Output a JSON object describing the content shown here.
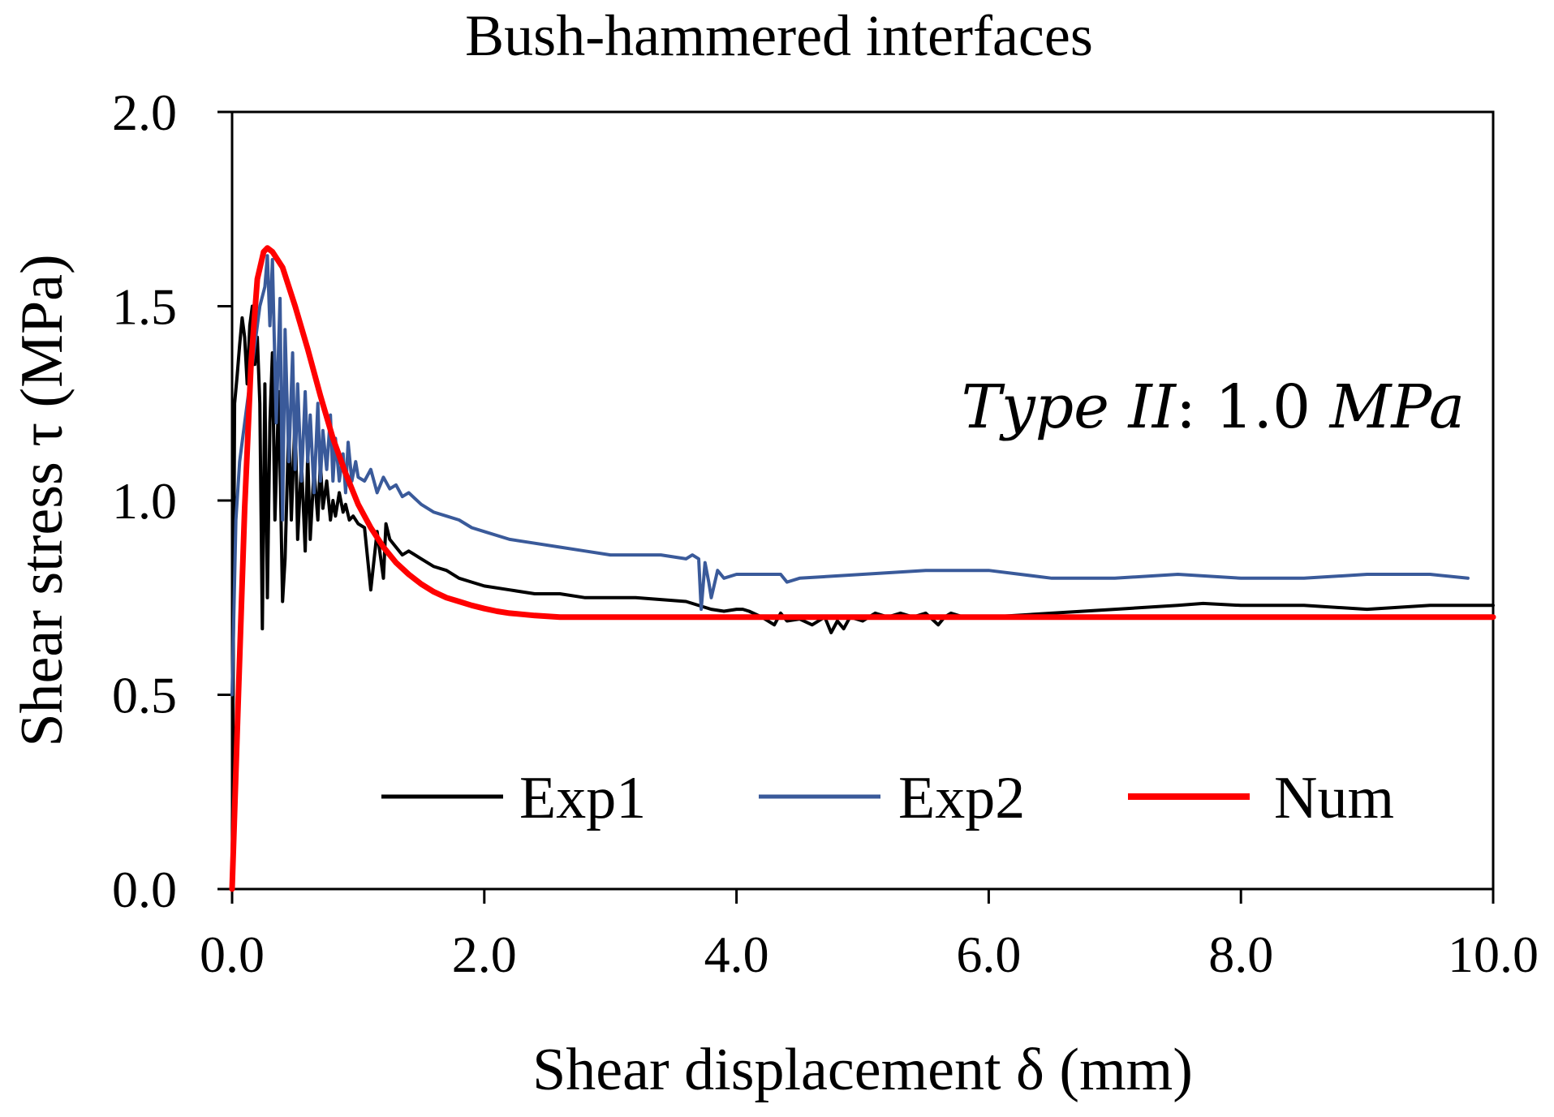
{
  "chart_data": {
    "type": "line",
    "title": "Bush-hammered interfaces",
    "xlabel": "Shear displacement δ (mm)",
    "ylabel": "Shear stress τ (MPa)",
    "xlim": [
      0,
      10
    ],
    "ylim": [
      0,
      2
    ],
    "xticks": [
      "0.0",
      "2.0",
      "4.0",
      "6.0",
      "8.0",
      "10.0"
    ],
    "yticks": [
      "0.0",
      "0.5",
      "1.0",
      "1.5",
      "2.0"
    ],
    "grid": false,
    "legend_position": "bottom",
    "annotation": {
      "italic_part": "Type II",
      "separator": ": ",
      "value_part": "1.0 ",
      "unit_part": "MPa"
    },
    "series": [
      {
        "name": "Exp1",
        "color": "#000000",
        "x": [
          0.0,
          0.02,
          0.04,
          0.06,
          0.08,
          0.1,
          0.12,
          0.14,
          0.16,
          0.18,
          0.2,
          0.22,
          0.24,
          0.26,
          0.28,
          0.3,
          0.32,
          0.34,
          0.37,
          0.4,
          0.42,
          0.45,
          0.47,
          0.5,
          0.52,
          0.55,
          0.58,
          0.6,
          0.62,
          0.65,
          0.68,
          0.7,
          0.72,
          0.75,
          0.78,
          0.8,
          0.82,
          0.85,
          0.88,
          0.9,
          0.93,
          0.96,
          1.0,
          1.05,
          1.1,
          1.15,
          1.2,
          1.22,
          1.25,
          1.3,
          1.35,
          1.4,
          1.5,
          1.6,
          1.7,
          1.8,
          1.9,
          2.0,
          2.2,
          2.4,
          2.6,
          2.8,
          3.0,
          3.2,
          3.4,
          3.6,
          3.8,
          3.9,
          4.0,
          4.05,
          4.1,
          4.2,
          4.3,
          4.35,
          4.4,
          4.5,
          4.6,
          4.7,
          4.75,
          4.8,
          4.85,
          4.9,
          5.0,
          5.1,
          5.2,
          5.3,
          5.4,
          5.5,
          5.6,
          5.65,
          5.7,
          5.8,
          6.0,
          6.5,
          7.0,
          7.5,
          7.7,
          8.0,
          8.5,
          9.0,
          9.5,
          10.0
        ],
        "y": [
          0.0,
          1.25,
          1.32,
          1.4,
          1.47,
          1.42,
          1.3,
          1.45,
          1.5,
          1.35,
          1.42,
          1.25,
          0.67,
          1.3,
          0.75,
          1.2,
          1.38,
          0.95,
          1.28,
          0.74,
          0.85,
          1.2,
          0.95,
          1.22,
          0.9,
          1.1,
          0.87,
          1.12,
          0.9,
          1.08,
          0.95,
          1.1,
          0.98,
          1.05,
          0.95,
          1.0,
          0.96,
          1.02,
          0.97,
          0.99,
          0.95,
          0.96,
          0.94,
          0.93,
          0.77,
          0.92,
          0.8,
          0.94,
          0.9,
          0.88,
          0.86,
          0.87,
          0.85,
          0.83,
          0.82,
          0.8,
          0.79,
          0.78,
          0.77,
          0.76,
          0.76,
          0.75,
          0.75,
          0.75,
          0.745,
          0.74,
          0.72,
          0.715,
          0.72,
          0.72,
          0.715,
          0.7,
          0.68,
          0.71,
          0.69,
          0.695,
          0.68,
          0.7,
          0.66,
          0.69,
          0.67,
          0.7,
          0.69,
          0.71,
          0.7,
          0.71,
          0.7,
          0.71,
          0.68,
          0.7,
          0.71,
          0.7,
          0.7,
          0.71,
          0.72,
          0.73,
          0.735,
          0.73,
          0.73,
          0.72,
          0.73,
          0.73
        ]
      },
      {
        "name": "Exp2",
        "color": "#3a5a9a",
        "x": [
          0.0,
          0.03,
          0.06,
          0.1,
          0.14,
          0.18,
          0.22,
          0.26,
          0.28,
          0.3,
          0.32,
          0.35,
          0.38,
          0.4,
          0.42,
          0.45,
          0.48,
          0.5,
          0.52,
          0.55,
          0.58,
          0.6,
          0.62,
          0.65,
          0.68,
          0.7,
          0.72,
          0.75,
          0.78,
          0.8,
          0.82,
          0.85,
          0.88,
          0.9,
          0.92,
          0.95,
          0.98,
          1.0,
          1.05,
          1.1,
          1.15,
          1.2,
          1.25,
          1.3,
          1.35,
          1.4,
          1.5,
          1.6,
          1.7,
          1.8,
          1.9,
          2.0,
          2.2,
          2.4,
          2.6,
          2.8,
          3.0,
          3.2,
          3.4,
          3.6,
          3.65,
          3.7,
          3.72,
          3.75,
          3.78,
          3.8,
          3.85,
          3.9,
          4.0,
          4.2,
          4.35,
          4.4,
          4.5,
          5.0,
          5.5,
          6.0,
          6.5,
          7.0,
          7.5,
          8.0,
          8.5,
          9.0,
          9.5,
          9.8
        ],
        "y": [
          0.5,
          0.95,
          1.1,
          1.2,
          1.3,
          1.4,
          1.5,
          1.55,
          1.63,
          1.45,
          1.62,
          1.2,
          1.52,
          0.95,
          1.44,
          1.1,
          1.38,
          1.08,
          1.3,
          1.05,
          1.28,
          1.1,
          1.22,
          1.02,
          1.25,
          1.05,
          1.18,
          1.08,
          1.22,
          1.05,
          1.16,
          1.05,
          1.12,
          1.02,
          1.15,
          1.05,
          1.1,
          1.06,
          1.05,
          1.08,
          1.02,
          1.06,
          1.03,
          1.04,
          1.01,
          1.02,
          0.99,
          0.97,
          0.96,
          0.95,
          0.93,
          0.92,
          0.9,
          0.89,
          0.88,
          0.87,
          0.86,
          0.86,
          0.86,
          0.85,
          0.86,
          0.85,
          0.72,
          0.84,
          0.79,
          0.75,
          0.82,
          0.8,
          0.81,
          0.81,
          0.81,
          0.79,
          0.8,
          0.81,
          0.82,
          0.82,
          0.8,
          0.8,
          0.81,
          0.8,
          0.8,
          0.81,
          0.81,
          0.8
        ]
      },
      {
        "name": "Num",
        "color": "#ff0000",
        "x": [
          0.0,
          0.05,
          0.1,
          0.15,
          0.2,
          0.25,
          0.28,
          0.32,
          0.4,
          0.5,
          0.6,
          0.7,
          0.8,
          0.9,
          1.0,
          1.1,
          1.2,
          1.3,
          1.4,
          1.5,
          1.6,
          1.7,
          1.8,
          1.9,
          2.0,
          2.1,
          2.2,
          2.3,
          2.4,
          2.5,
          2.6,
          3.0,
          4.0,
          5.0,
          6.0,
          7.0,
          8.0,
          9.0,
          10.0
        ],
        "y": [
          0.0,
          0.5,
          0.98,
          1.35,
          1.57,
          1.64,
          1.65,
          1.64,
          1.6,
          1.5,
          1.39,
          1.27,
          1.16,
          1.07,
          0.99,
          0.93,
          0.88,
          0.84,
          0.81,
          0.785,
          0.765,
          0.75,
          0.74,
          0.73,
          0.722,
          0.715,
          0.71,
          0.707,
          0.704,
          0.702,
          0.7,
          0.7,
          0.7,
          0.7,
          0.7,
          0.7,
          0.7,
          0.7,
          0.7
        ]
      }
    ]
  }
}
